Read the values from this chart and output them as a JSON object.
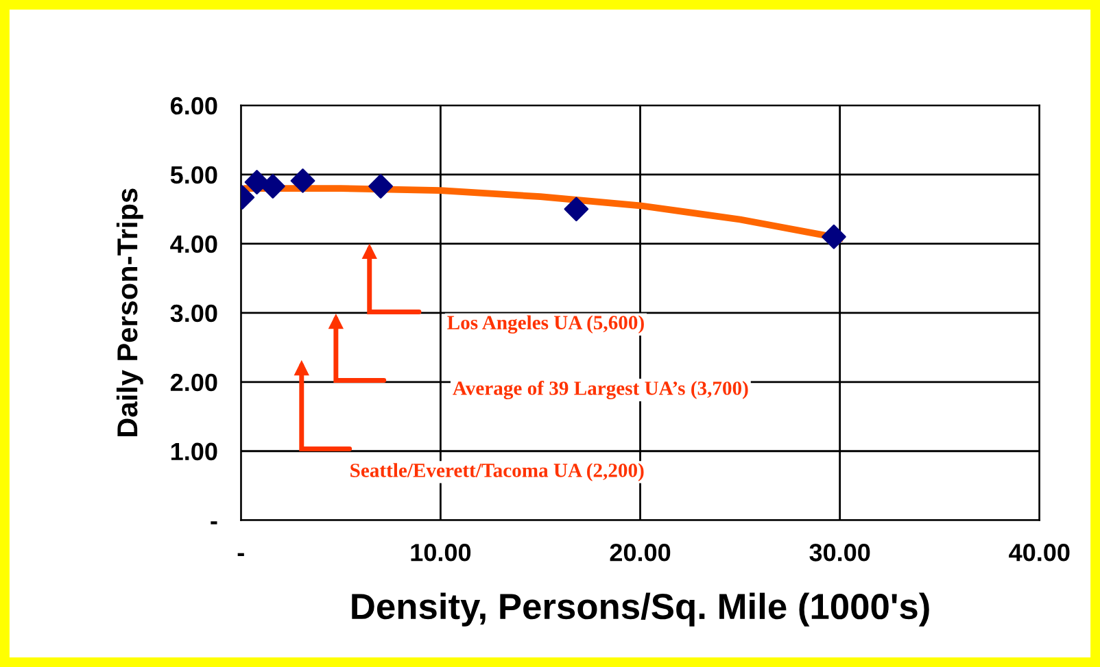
{
  "chart_data": {
    "type": "scatter",
    "xlabel": "Density, Persons/Sq. Mile (1000's)",
    "ylabel": "Daily Person-Trips",
    "xlim": [
      0,
      40
    ],
    "ylim": [
      0,
      6
    ],
    "xticks": [
      {
        "value": 0,
        "label": "-"
      },
      {
        "value": 10,
        "label": "10.00"
      },
      {
        "value": 20,
        "label": "20.00"
      },
      {
        "value": 30,
        "label": "30.00"
      },
      {
        "value": 40,
        "label": "40.00"
      }
    ],
    "yticks": [
      {
        "value": 0,
        "label": "-"
      },
      {
        "value": 1,
        "label": "1.00"
      },
      {
        "value": 2,
        "label": "2.00"
      },
      {
        "value": 3,
        "label": "3.00"
      },
      {
        "value": 4,
        "label": "4.00"
      },
      {
        "value": 5,
        "label": "5.00"
      },
      {
        "value": 6,
        "label": "6.00"
      }
    ],
    "grid": true,
    "series": [
      {
        "color": "#000080",
        "marker": "diamond",
        "x": [
          0.07,
          0.8,
          1.6,
          3.1,
          7.0,
          16.8,
          29.7
        ],
        "values": [
          4.67,
          4.89,
          4.83,
          4.91,
          4.83,
          4.5,
          4.1
        ]
      },
      {
        "type": "line",
        "color": "#ff6600",
        "marker": "none",
        "line_style": "solid",
        "x": [
          0.3,
          5,
          10,
          15,
          20,
          25,
          30
        ],
        "values": [
          4.8,
          4.8,
          4.77,
          4.68,
          4.55,
          4.35,
          4.08
        ]
      }
    ],
    "annotations": [
      "Los Angeles UA (5,600)",
      "Average of 39 Largest UA’s (3,700)",
      "Seattle/Everett/Tacoma UA (2,200)"
    ]
  }
}
